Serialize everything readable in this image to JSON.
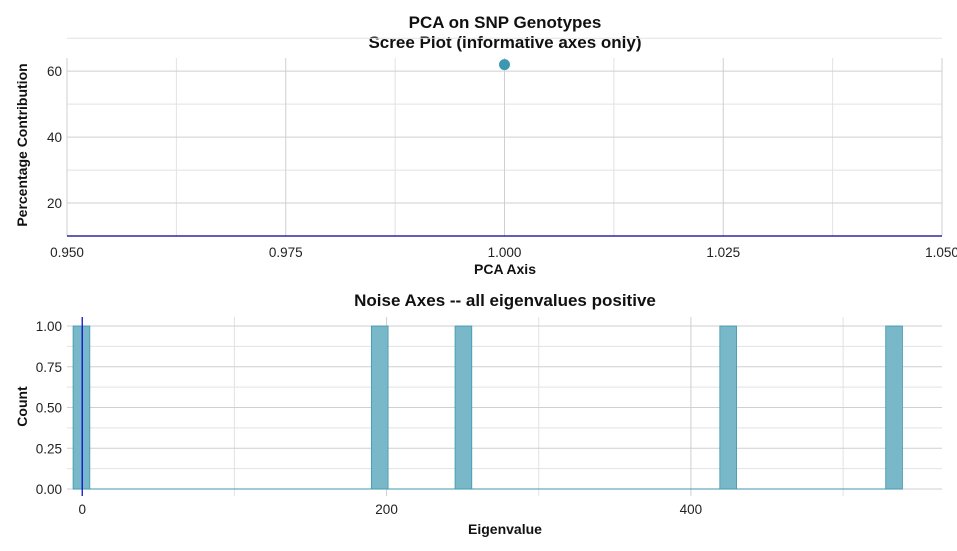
{
  "figure_title": [
    "PCA on SNP Genotypes",
    "Scree Plot (informative axes only)"
  ],
  "chart_data": [
    {
      "type": "scatter",
      "title": "PCA on SNP Genotypes\nScree Plot (informative axes only)",
      "xlabel": "PCA Axis",
      "ylabel": "Percentage Contribution",
      "xlim": [
        0.95,
        1.05
      ],
      "ylim": [
        10,
        64
      ],
      "x_ticks": [
        "0.950",
        "0.975",
        "1.000",
        "1.025",
        "1.050"
      ],
      "x_tick_values": [
        0.95,
        0.975,
        1.0,
        1.025,
        1.05
      ],
      "y_ticks": [
        "20",
        "40",
        "60"
      ],
      "y_tick_values": [
        20,
        40,
        60
      ],
      "points": [
        {
          "x": 1.0,
          "y": 62
        }
      ],
      "hline": 10,
      "grid": true,
      "colors": {
        "point": "#3d97ae",
        "hline": "#00008b"
      }
    },
    {
      "type": "bar",
      "subtype": "histogram",
      "title": "Noise Axes -- all eigenvalues positive",
      "xlabel": "Eigenvalue",
      "ylabel": "Count",
      "xlim": [
        -10,
        565
      ],
      "ylim": [
        0,
        1
      ],
      "x_ticks": [
        "0",
        "200",
        "400"
      ],
      "x_tick_values": [
        0,
        200,
        400
      ],
      "y_ticks": [
        "0.00",
        "0.25",
        "0.50",
        "0.75",
        "1.00"
      ],
      "y_tick_values": [
        0,
        0.25,
        0.5,
        0.75,
        1.0
      ],
      "bars": [
        {
          "x0": -6,
          "x1": 5,
          "count": 1
        },
        {
          "x0": 190,
          "x1": 201,
          "count": 1
        },
        {
          "x0": 245,
          "x1": 256,
          "count": 1
        },
        {
          "x0": 419,
          "x1": 430,
          "count": 1
        },
        {
          "x0": 528,
          "x1": 539,
          "count": 1
        }
      ],
      "vline": 0,
      "grid": true,
      "colors": {
        "bar_fill": "#78b8c8",
        "bar_stroke": "#3d97ae",
        "vline": "#0000cd"
      }
    }
  ]
}
